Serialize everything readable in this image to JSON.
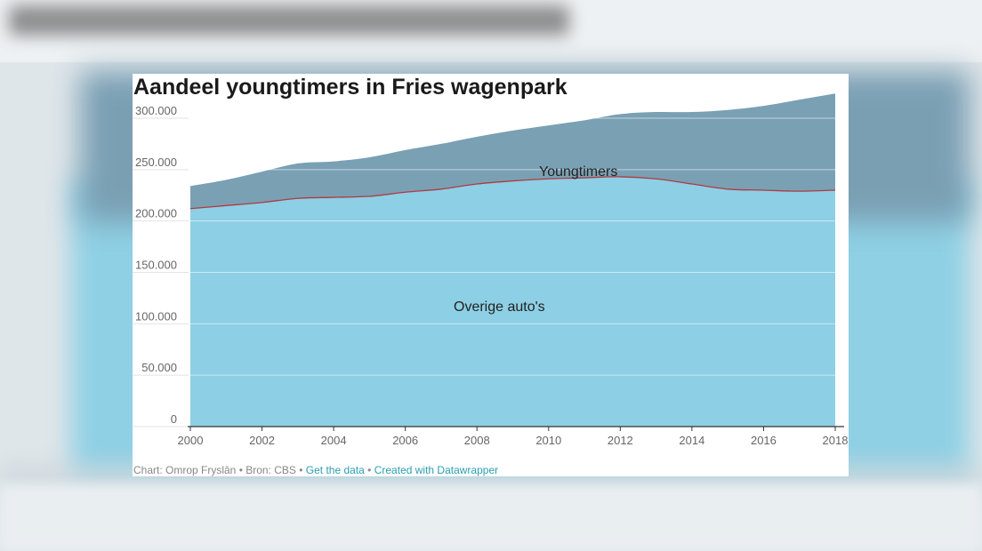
{
  "chart_data": {
    "type": "area",
    "title": "Aandeel youngtimers in Fries wagenpark",
    "x": [
      2000,
      2001,
      2002,
      2003,
      2004,
      2005,
      2006,
      2007,
      2008,
      2009,
      2010,
      2011,
      2012,
      2013,
      2014,
      2015,
      2016,
      2017,
      2018
    ],
    "series": [
      {
        "name": "Overige auto's",
        "color": "#8dcfe4",
        "values": [
          212000,
          215000,
          218000,
          222000,
          223000,
          224000,
          228000,
          231000,
          236000,
          239000,
          241000,
          242000,
          243000,
          241000,
          236000,
          231000,
          230000,
          229000,
          230000
        ]
      },
      {
        "name": "Youngtimers",
        "color": "#7aa0b4",
        "values": [
          22000,
          25000,
          30000,
          34000,
          35000,
          38000,
          41000,
          44000,
          46000,
          49000,
          52000,
          56000,
          61000,
          65000,
          70000,
          77000,
          82000,
          89000,
          94000
        ]
      }
    ],
    "ylim": [
      0,
      300000
    ],
    "xlim": [
      2000,
      2018
    ],
    "y_ticks": [
      "0",
      "50.000",
      "100.000",
      "150.000",
      "200.000",
      "250.000",
      "300.000"
    ],
    "x_ticks": [
      "2000",
      "2002",
      "2004",
      "2006",
      "2008",
      "2010",
      "2012",
      "2014",
      "2016",
      "2018"
    ],
    "divider_color": "#b03a40",
    "grid": true
  },
  "footer": {
    "credit": "Chart: Omrop Fryslân • Bron: CBS • ",
    "get_data": "Get the data",
    "sep": " • ",
    "created_with": "Created with Datawrapper"
  }
}
